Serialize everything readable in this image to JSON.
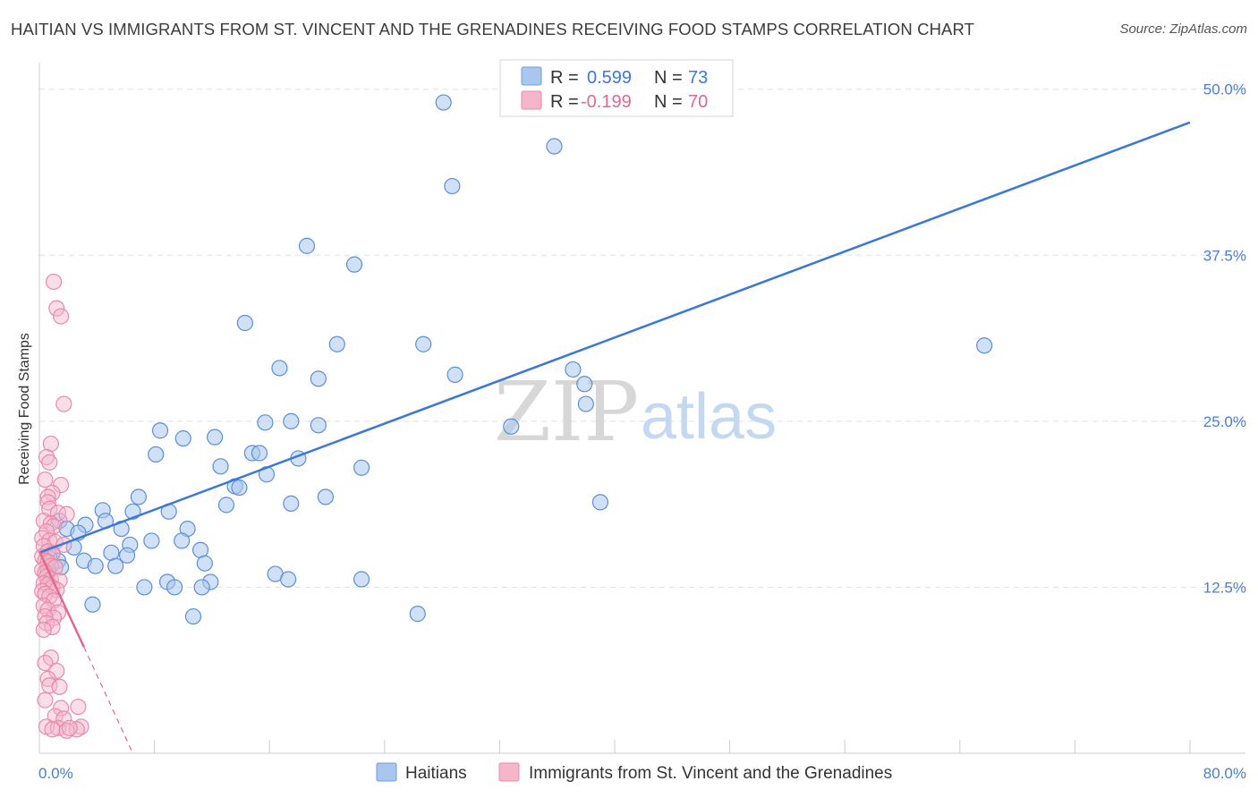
{
  "title": "HAITIAN VS IMMIGRANTS FROM ST. VINCENT AND THE GRENADINES RECEIVING FOOD STAMPS CORRELATION CHART",
  "source": "Source: ZipAtlas.com",
  "watermark": {
    "zip": "ZIP",
    "atlas": "atlas"
  },
  "colors": {
    "blue": "#3c78d8",
    "blue_fill": "#a9c6ee",
    "pink": "#e2688f",
    "pink_fill": "#f5b6ca",
    "grid": "#e0e0e0"
  },
  "legend": {
    "rows": [
      {
        "r_label": "R =",
        "r_value": "0.599",
        "n_label": "N =",
        "n_value": "73"
      },
      {
        "r_label": "R =",
        "r_value": "-0.199",
        "n_label": "N =",
        "n_value": "70"
      }
    ]
  },
  "bottom_legend": [
    "Haitians",
    "Immigrants from St. Vincent and the Grenadines"
  ],
  "chart_data": {
    "type": "scatter",
    "xlabel": "",
    "ylabel": "Receiving Food Stamps",
    "xlim": [
      0,
      80
    ],
    "ylim": [
      0,
      52
    ],
    "x_tick_labels": [
      "0.0%",
      "80.0%"
    ],
    "y_ticks": [
      12.5,
      25.0,
      37.5,
      50.0
    ],
    "y_tick_labels": [
      "12.5%",
      "25.0%",
      "37.5%",
      "50.0%"
    ],
    "series": [
      {
        "name": "Haitians",
        "trend": {
          "x": [
            0,
            80
          ],
          "y": [
            15.1,
            47.5
          ]
        },
        "points": [
          [
            28.1,
            49.0
          ],
          [
            35.8,
            45.7
          ],
          [
            28.7,
            42.7
          ],
          [
            18.6,
            38.2
          ],
          [
            21.9,
            36.8
          ],
          [
            14.3,
            32.4
          ],
          [
            20.7,
            30.8
          ],
          [
            26.7,
            30.8
          ],
          [
            65.7,
            30.7
          ],
          [
            16.7,
            29.0
          ],
          [
            37.1,
            28.9
          ],
          [
            19.4,
            28.2
          ],
          [
            28.9,
            28.5
          ],
          [
            37.9,
            27.8
          ],
          [
            38.0,
            26.3
          ],
          [
            32.8,
            24.6
          ],
          [
            8.4,
            24.3
          ],
          [
            15.7,
            24.9
          ],
          [
            17.5,
            25.0
          ],
          [
            19.4,
            24.7
          ],
          [
            10.0,
            23.7
          ],
          [
            12.2,
            23.8
          ],
          [
            8.1,
            22.5
          ],
          [
            14.8,
            22.6
          ],
          [
            15.3,
            22.6
          ],
          [
            18.0,
            22.2
          ],
          [
            12.6,
            21.6
          ],
          [
            22.4,
            21.5
          ],
          [
            15.8,
            21.0
          ],
          [
            13.6,
            20.1
          ],
          [
            13.9,
            20.0
          ],
          [
            19.9,
            19.3
          ],
          [
            6.9,
            19.3
          ],
          [
            17.5,
            18.8
          ],
          [
            13.0,
            18.7
          ],
          [
            39.0,
            18.9
          ],
          [
            4.4,
            18.3
          ],
          [
            6.5,
            18.2
          ],
          [
            9.0,
            18.2
          ],
          [
            4.6,
            17.5
          ],
          [
            3.2,
            17.2
          ],
          [
            1.4,
            17.5
          ],
          [
            1.9,
            16.9
          ],
          [
            10.3,
            16.9
          ],
          [
            5.7,
            16.9
          ],
          [
            2.7,
            16.6
          ],
          [
            7.8,
            16.0
          ],
          [
            9.9,
            16.0
          ],
          [
            6.3,
            15.7
          ],
          [
            2.4,
            15.5
          ],
          [
            11.2,
            15.3
          ],
          [
            0.9,
            15.1
          ],
          [
            5.0,
            15.1
          ],
          [
            6.1,
            14.9
          ],
          [
            1.3,
            14.5
          ],
          [
            3.1,
            14.5
          ],
          [
            11.5,
            14.3
          ],
          [
            5.3,
            14.1
          ],
          [
            3.9,
            14.1
          ],
          [
            16.4,
            13.5
          ],
          [
            17.3,
            13.1
          ],
          [
            22.4,
            13.1
          ],
          [
            8.9,
            12.9
          ],
          [
            11.9,
            12.9
          ],
          [
            7.3,
            12.5
          ],
          [
            9.4,
            12.5
          ],
          [
            11.3,
            12.5
          ],
          [
            3.7,
            11.2
          ],
          [
            10.7,
            10.3
          ],
          [
            26.3,
            10.5
          ],
          [
            1.5,
            14.0
          ],
          [
            0.6,
            13.8
          ],
          [
            0.7,
            14.7
          ]
        ]
      },
      {
        "name": "Immigrants from St. Vincent and the Grenadines",
        "trend": {
          "x": [
            0,
            3.1
          ],
          "y": [
            15.2,
            8.0
          ]
        },
        "trend_dashed": {
          "x": [
            3.1,
            6.5
          ],
          "y": [
            8.0,
            0.0
          ]
        },
        "points": [
          [
            1.0,
            35.5
          ],
          [
            1.2,
            33.5
          ],
          [
            1.5,
            32.9
          ],
          [
            1.7,
            26.3
          ],
          [
            0.8,
            23.3
          ],
          [
            0.5,
            22.3
          ],
          [
            0.7,
            21.9
          ],
          [
            0.4,
            20.6
          ],
          [
            1.5,
            20.2
          ],
          [
            0.9,
            19.6
          ],
          [
            0.6,
            19.3
          ],
          [
            0.6,
            18.9
          ],
          [
            0.7,
            18.4
          ],
          [
            1.3,
            18.1
          ],
          [
            1.9,
            18.0
          ],
          [
            0.3,
            17.5
          ],
          [
            0.8,
            17.3
          ],
          [
            1.0,
            17.1
          ],
          [
            0.5,
            16.7
          ],
          [
            0.2,
            16.2
          ],
          [
            0.7,
            16.0
          ],
          [
            1.1,
            15.9
          ],
          [
            1.7,
            15.7
          ],
          [
            0.3,
            15.6
          ],
          [
            0.6,
            15.2
          ],
          [
            0.9,
            15.0
          ],
          [
            0.2,
            14.8
          ],
          [
            0.4,
            14.5
          ],
          [
            0.6,
            14.4
          ],
          [
            0.8,
            14.1
          ],
          [
            1.1,
            14.0
          ],
          [
            0.2,
            13.8
          ],
          [
            0.4,
            13.6
          ],
          [
            0.5,
            13.3
          ],
          [
            0.8,
            13.1
          ],
          [
            1.4,
            13.0
          ],
          [
            0.3,
            12.8
          ],
          [
            0.6,
            12.7
          ],
          [
            0.9,
            12.5
          ],
          [
            1.2,
            12.3
          ],
          [
            0.2,
            12.2
          ],
          [
            0.4,
            12.0
          ],
          [
            0.7,
            11.8
          ],
          [
            1.0,
            11.5
          ],
          [
            0.3,
            11.1
          ],
          [
            0.6,
            10.8
          ],
          [
            1.3,
            10.6
          ],
          [
            1.0,
            10.2
          ],
          [
            0.4,
            10.3
          ],
          [
            0.5,
            9.8
          ],
          [
            0.9,
            9.5
          ],
          [
            0.3,
            9.3
          ],
          [
            0.8,
            7.2
          ],
          [
            0.4,
            6.8
          ],
          [
            1.2,
            6.2
          ],
          [
            0.6,
            5.6
          ],
          [
            0.7,
            5.1
          ],
          [
            1.4,
            5.0
          ],
          [
            0.4,
            4.0
          ],
          [
            1.5,
            3.4
          ],
          [
            2.7,
            3.5
          ],
          [
            1.1,
            2.8
          ],
          [
            1.7,
            2.6
          ],
          [
            2.9,
            2.0
          ],
          [
            0.5,
            2.0
          ],
          [
            1.3,
            1.9
          ],
          [
            2.6,
            1.8
          ],
          [
            0.9,
            1.8
          ],
          [
            1.9,
            1.7
          ],
          [
            2.1,
            1.9
          ]
        ]
      }
    ]
  }
}
